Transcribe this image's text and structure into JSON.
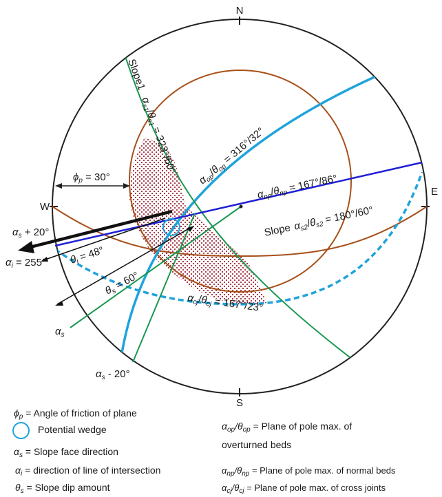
{
  "compass": {
    "north": "N",
    "south": "S",
    "east": "E",
    "west": "W"
  },
  "planes": {
    "slope1": {
      "name": "Slope1",
      "label_prefix": "α",
      "label": "αs1/θs1 = 323°/60°",
      "value": "323°/60°"
    },
    "slope2": {
      "name": "Slope",
      "value": "180°/60°"
    },
    "overturned": {
      "value": "316°/32°"
    },
    "normal": {
      "value": "167°/86°"
    },
    "cross": {
      "value": "167°/23°"
    }
  },
  "angles": {
    "phi_p": "30°",
    "alpha_s_plus": "+ 20°",
    "alpha_s_minus": "- 20°",
    "theta_i": "48°",
    "theta_s": "60°",
    "alpha_i": "255°"
  },
  "legend": {
    "phi_p": "= Angle of friction of plane",
    "wedge": "Potential wedge",
    "alpha_s": "= Slope face direction",
    "alpha_i": "=  direction of line of intersection",
    "theta_s": "= Slope dip amount",
    "alpha_op_line1": "= Plane of pole max. of",
    "alpha_op_line2": "overturned beds",
    "alpha_np": "= Plane of pole max. of normal beds",
    "alpha_cj": "= Plane of pole max. of cross joints"
  },
  "colors": {
    "primitive": "#222222",
    "slope1": "#1a9850",
    "slope2": "#a6501a",
    "overturned": "#1fa3dc",
    "normal": "#1f1fd6",
    "wedge_fill": "#9e2a3a",
    "wedge_circle": "#1fa3dc"
  }
}
